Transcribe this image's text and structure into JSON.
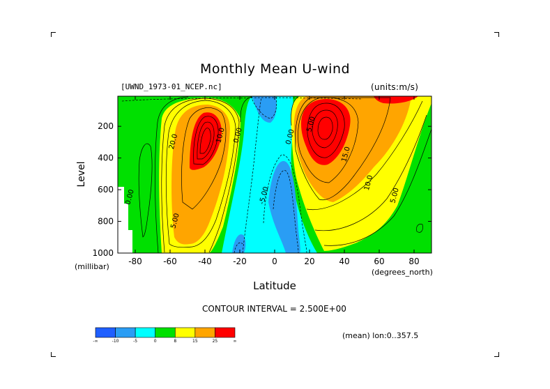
{
  "title": "Monthly Mean U-wind",
  "source_label": "[UWND_1973-01_NCEP.nc]",
  "units_label": "(units:m/s)",
  "contour_interval_label": "CONTOUR INTERVAL = 2.500E+00",
  "mean_label": "(mean) lon:0..357.5",
  "chart_data": {
    "type": "heatmap",
    "title": "Monthly Mean U-wind",
    "xlabel": "Latitude",
    "ylabel": "Level",
    "x_unit_label": "(degrees_north)",
    "y_unit_label": "(millibar)",
    "xlim": [
      -90,
      90
    ],
    "ylim": [
      1000,
      10
    ],
    "x_ticks": [
      -80,
      -60,
      -40,
      -20,
      0,
      20,
      40,
      60,
      80
    ],
    "y_ticks": [
      200,
      400,
      600,
      800,
      1000
    ],
    "contour_interval": 2.5,
    "colorbar": {
      "bins": [
        {
          "label": "-∞",
          "color": "#1f5fff"
        },
        {
          "label": "-10",
          "color": "#2a9df4"
        },
        {
          "label": "-5",
          "color": "#00ffff"
        },
        {
          "label": "0",
          "color": "#00e000"
        },
        {
          "label": "8",
          "color": "#ffff00"
        },
        {
          "label": "15",
          "color": "#ffa500"
        },
        {
          "label": "25",
          "color": "#ff0000"
        }
      ],
      "end_label": "∞"
    },
    "contour_labels": [
      {
        "text": "0.00",
        "lat": -82,
        "lev": 650
      },
      {
        "text": "5.00",
        "lat": -56,
        "lev": 800
      },
      {
        "text": "20.0",
        "lat": -57,
        "lev": 300
      },
      {
        "text": "10.0",
        "lat": -30,
        "lev": 260
      },
      {
        "text": "0.00",
        "lat": -20,
        "lev": 260
      },
      {
        "text": "-5.00",
        "lat": -5,
        "lev": 640
      },
      {
        "text": "0.00",
        "lat": 10,
        "lev": 270
      },
      {
        "text": "5.00",
        "lat": 22,
        "lev": 190
      },
      {
        "text": "15.0",
        "lat": 42,
        "lev": 380
      },
      {
        "text": "10.0",
        "lat": 55,
        "lev": 560
      },
      {
        "text": "5.00",
        "lat": 70,
        "lev": 640
      }
    ],
    "features": [
      {
        "name": "southern-jet-core",
        "lat": -43,
        "lev": 220,
        "value_range": "25 and above"
      },
      {
        "name": "northern-jet-core",
        "lat": 30,
        "lev": 200,
        "value_range": "25 and above"
      },
      {
        "name": "tropical-easterlies",
        "lat": -5,
        "lev": 500,
        "value_range": "-5 to -10"
      }
    ]
  },
  "colors": {
    "blue": "#1f5fff",
    "mid_blue": "#2a9df4",
    "cyan": "#00ffff",
    "green": "#00e000",
    "yellow": "#ffff00",
    "orange": "#ffa500",
    "red": "#ff0000"
  }
}
